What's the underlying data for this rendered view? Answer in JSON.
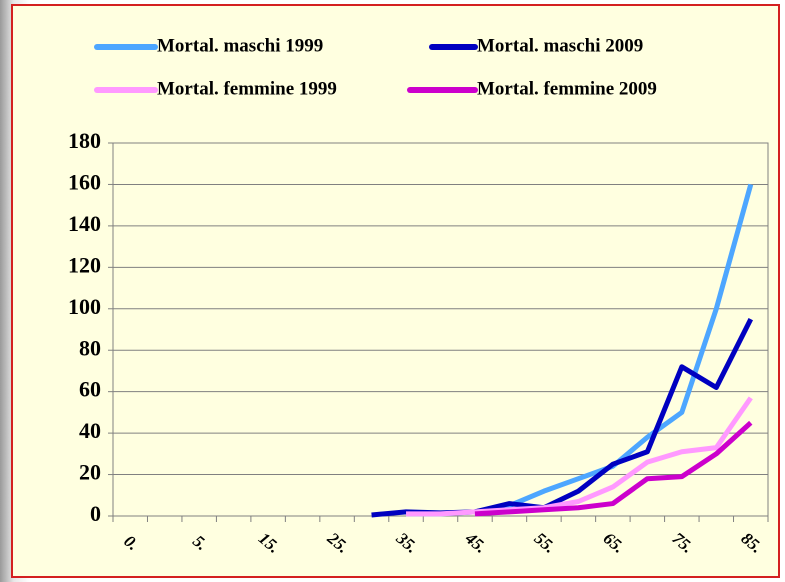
{
  "chart_data": {
    "type": "line",
    "categories": [
      "0.",
      null,
      "5.",
      null,
      "15.",
      null,
      "25.",
      null,
      "35.",
      null,
      "45.",
      null,
      "55.",
      null,
      "65.",
      null,
      "75.",
      null,
      "85."
    ],
    "series": [
      {
        "name": "Mortal. maschi 1999",
        "color": "#4da6ff",
        "values": [
          null,
          null,
          null,
          null,
          null,
          null,
          null,
          null,
          1,
          1,
          2,
          5,
          12,
          18,
          24,
          38,
          50,
          100,
          160
        ]
      },
      {
        "name": "Mortal. maschi 2009",
        "color": "#0000c0",
        "values": [
          null,
          null,
          null,
          null,
          null,
          null,
          null,
          0.5,
          2,
          1.5,
          2,
          6,
          4,
          12,
          25,
          31,
          72,
          62,
          95
        ]
      },
      {
        "name": "Mortal. femmine 1999",
        "color": "#ff99ff",
        "values": [
          null,
          null,
          null,
          null,
          null,
          null,
          null,
          null,
          1,
          1,
          2,
          3,
          4,
          7,
          14,
          26,
          31,
          33,
          57
        ]
      },
      {
        "name": "Mortal. femmine 2009",
        "color": "#cc00cc",
        "values": [
          null,
          null,
          null,
          null,
          null,
          null,
          null,
          null,
          null,
          null,
          1,
          2,
          3,
          4,
          6,
          18,
          19,
          30,
          45
        ]
      }
    ],
    "ylim": [
      0,
      180
    ],
    "yticks": [
      0,
      20,
      40,
      60,
      80,
      100,
      120,
      140,
      160,
      180
    ],
    "grid": true
  }
}
